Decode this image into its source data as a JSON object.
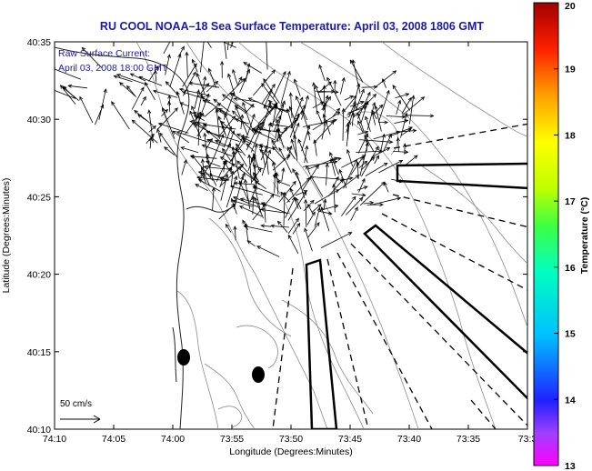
{
  "title": "RU COOL  NOAA–18  Sea Surface Temperature:  April 03, 2008 1806 GMT",
  "annotation": {
    "line1": "Raw Surface Current:",
    "line2": "April 03, 2008 18:00 GMT"
  },
  "scale_label": "50 cm/s",
  "axes": {
    "xlabel": "Longitude (Degrees:Minutes)",
    "ylabel": "Latitude (Degrees:Minutes)",
    "x_ticks": [
      "74:10",
      "74:05",
      "74:00",
      "73:55",
      "73:50",
      "73:45",
      "73:40",
      "73:35",
      "73:3"
    ],
    "y_ticks": [
      "40:35",
      "40:30",
      "40:25",
      "40:20",
      "40:15",
      "40:10"
    ]
  },
  "colorbar": {
    "label": "Temperature (°C)",
    "min": 13,
    "max": 20,
    "ticks": [
      "20",
      "19",
      "18",
      "17",
      "16",
      "15",
      "14",
      "13"
    ]
  },
  "colors": {
    "title": "#1a1aa6",
    "annotation": "#1a1aa6",
    "vectors": "#000000",
    "bathymetry": "#8a8a8a"
  }
}
